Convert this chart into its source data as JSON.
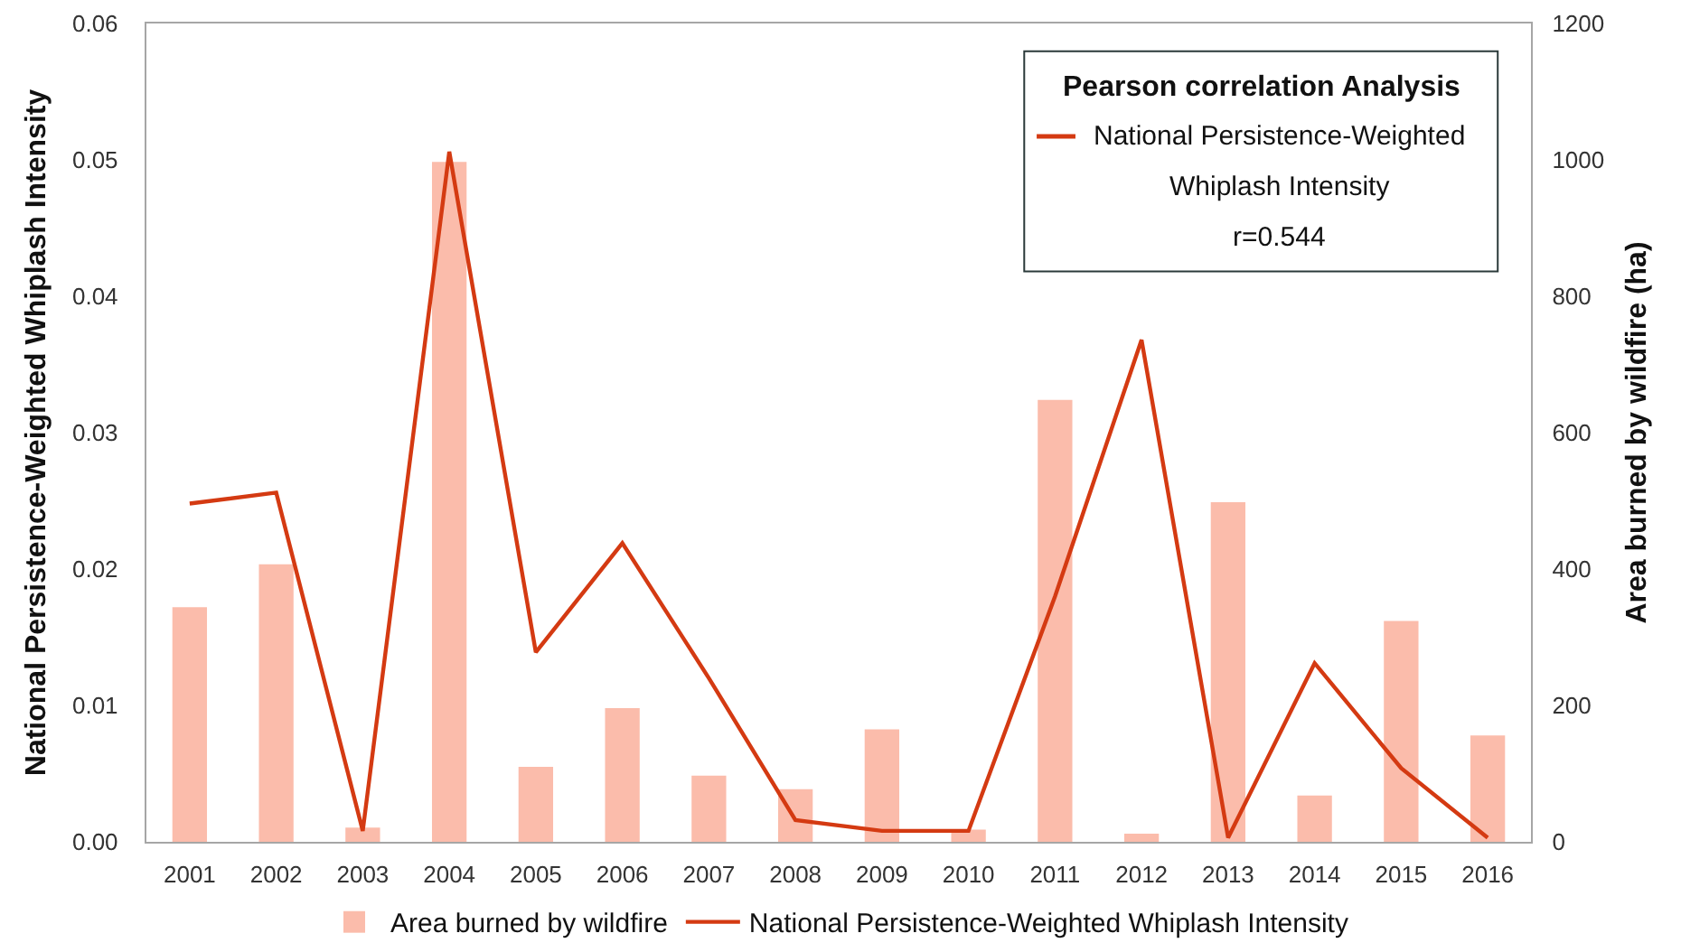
{
  "chart_data": {
    "type": "bar",
    "categories": [
      "2001",
      "2002",
      "2003",
      "2004",
      "2005",
      "2006",
      "2007",
      "2008",
      "2009",
      "2010",
      "2011",
      "2012",
      "2013",
      "2014",
      "2015",
      "2016"
    ],
    "ylabel": "National Persistence-Weighted Whiplash Intensity",
    "y2label": "Area burned by wildfire (ha)",
    "ylim": [
      0,
      0.06
    ],
    "yticks": [
      {
        "value": 0,
        "label": "0.00"
      },
      {
        "value": 0.01,
        "label": "0.01"
      },
      {
        "value": 0.02,
        "label": "0.02"
      },
      {
        "value": 0.03,
        "label": "0.03"
      },
      {
        "value": 0.04,
        "label": "0.04"
      },
      {
        "value": 0.05,
        "label": "0.05"
      },
      {
        "value": 0.06,
        "label": "0.06"
      }
    ],
    "y2lim": [
      0,
      1200
    ],
    "y2ticks": [
      0,
      200,
      400,
      600,
      800,
      1000,
      1200
    ],
    "series": [
      {
        "name": "Area burned by wildfire",
        "axis": "y2",
        "color": "#fbbcab",
        "values": [
          344,
          407,
          21,
          997,
          110,
          196,
          97,
          77,
          165,
          18,
          648,
          12,
          498,
          68,
          324,
          156
        ]
      },
      {
        "name": "National Persistence-Weighted Whiplash Intensity",
        "type": "line",
        "axis": "y",
        "color": "#d43a12",
        "values": [
          0.0248,
          0.0256,
          0.0008,
          0.0506,
          0.0139,
          0.0219,
          0.012,
          0.0016,
          0.0008,
          0.0008,
          0.018,
          0.0368,
          0.0003,
          0.0131,
          0.0054,
          0.0003
        ]
      }
    ],
    "annotations": [
      "Pearson correlation Analysis",
      "r=0.544"
    ],
    "legend": "bottom",
    "marker": "none",
    "line_style": "solid"
  }
}
